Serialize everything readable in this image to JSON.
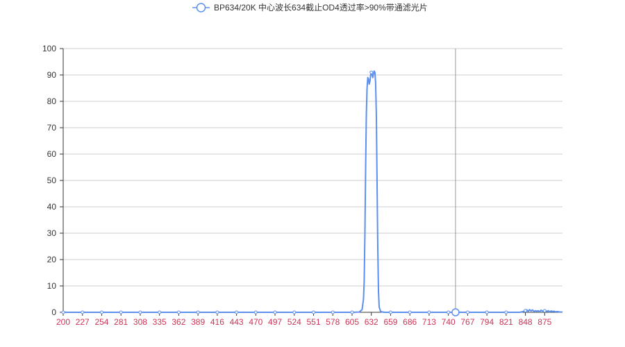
{
  "chart_data": {
    "type": "line",
    "legend": {
      "position": "top-center",
      "entries": [
        {
          "name": "BP634/20K 中心波长634截止OD4透过率>90%带通滤光片",
          "color": "#5b8ff0",
          "marker": "hollow-circle-icon"
        }
      ]
    },
    "x_axis": {
      "min": 200,
      "max": 900,
      "tick_labels": [
        "200",
        "227",
        "254",
        "281",
        "308",
        "335",
        "362",
        "389",
        "416",
        "443",
        "470",
        "497",
        "524",
        "551",
        "578",
        "605",
        "632",
        "659",
        "686",
        "713",
        "740",
        "767",
        "794",
        "821",
        "848",
        "875"
      ],
      "tick_label_color": "#cc3355"
    },
    "y_axis": {
      "min": 0,
      "max": 100,
      "tick_labels": [
        "0",
        "10",
        "20",
        "30",
        "40",
        "50",
        "60",
        "70",
        "80",
        "90",
        "100"
      ],
      "grid": true
    },
    "hover_cursor_x": 750,
    "series": [
      {
        "name": "BP634/20K 中心波长634截止OD4透过率>90%带通滤光片",
        "color": "#5b8ff0",
        "points": [
          [
            200,
            0
          ],
          [
            605,
            0
          ],
          [
            615,
            0.1
          ],
          [
            619,
            1
          ],
          [
            621,
            5
          ],
          [
            622,
            12
          ],
          [
            623,
            30
          ],
          [
            624,
            55
          ],
          [
            625,
            75
          ],
          [
            626,
            85
          ],
          [
            627,
            89
          ],
          [
            628,
            88.5
          ],
          [
            629,
            86.5
          ],
          [
            630,
            87.5
          ],
          [
            631,
            90
          ],
          [
            632,
            91
          ],
          [
            633,
            90
          ],
          [
            634,
            89
          ],
          [
            635,
            90.5
          ],
          [
            636,
            91.5
          ],
          [
            637,
            91
          ],
          [
            638,
            87
          ],
          [
            639,
            75
          ],
          [
            640,
            50
          ],
          [
            641,
            25
          ],
          [
            642,
            8
          ],
          [
            643,
            2
          ],
          [
            645,
            0.3
          ],
          [
            650,
            0
          ],
          [
            840,
            0
          ],
          [
            845,
            0.3
          ],
          [
            848,
            0.6
          ],
          [
            850,
            0.9
          ],
          [
            852,
            0.4
          ],
          [
            854,
            1.0
          ],
          [
            856,
            0.5
          ],
          [
            858,
            0.9
          ],
          [
            860,
            0.3
          ],
          [
            862,
            0.6
          ],
          [
            864,
            0.4
          ],
          [
            866,
            0.6
          ],
          [
            868,
            0.2
          ],
          [
            870,
            0.8
          ],
          [
            872,
            0.5
          ],
          [
            874,
            0.4
          ],
          [
            876,
            0.7
          ],
          [
            878,
            0.3
          ],
          [
            880,
            0.6
          ],
          [
            882,
            0.2
          ],
          [
            884,
            0.5
          ],
          [
            886,
            0.3
          ],
          [
            888,
            0.4
          ],
          [
            890,
            0.2
          ],
          [
            893,
            0.3
          ],
          [
            896,
            0.1
          ],
          [
            900,
            0.1
          ]
        ],
        "markers_at_ticks": true
      }
    ]
  }
}
